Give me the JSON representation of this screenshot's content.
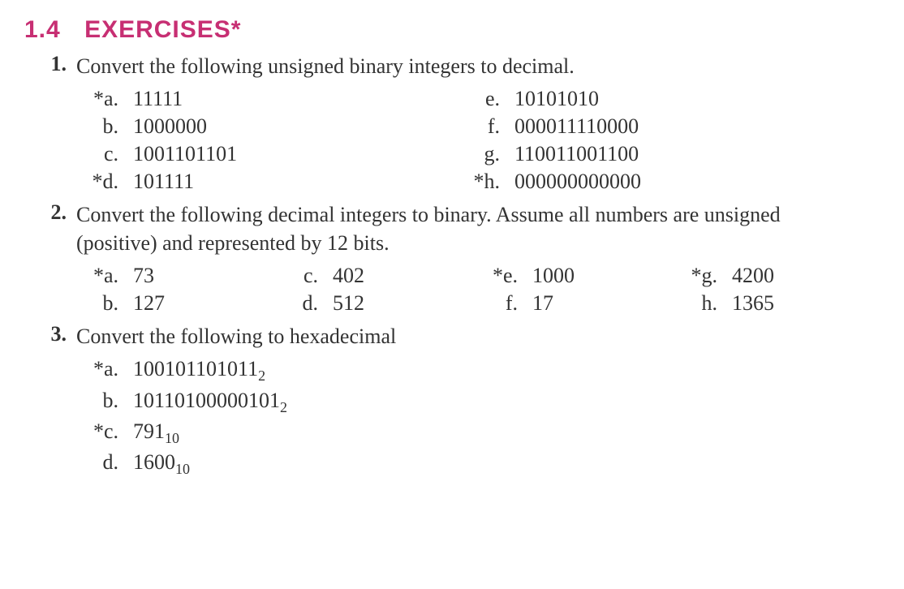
{
  "section": {
    "number": "1.4",
    "title": "EXERCISES*"
  },
  "colors": {
    "heading": "#c72f73",
    "text": "#333333",
    "background": "#ffffff"
  },
  "typography": {
    "heading_font": "Arial",
    "heading_size_pt": 22,
    "heading_weight": "bold",
    "body_font": "Georgia",
    "body_size_pt": 20
  },
  "problems": [
    {
      "number": "1.",
      "text": "Convert the following unsigned binary integers to decimal.",
      "layout": "2col",
      "items": [
        {
          "label": "*a.",
          "value": "11111"
        },
        {
          "label": "e.",
          "value": "10101010"
        },
        {
          "label": "b.",
          "value": "1000000"
        },
        {
          "label": "f.",
          "value": "000011110000"
        },
        {
          "label": "c.",
          "value": "1001101101"
        },
        {
          "label": "g.",
          "value": "110011001100"
        },
        {
          "label": "*d.",
          "value": "101111"
        },
        {
          "label": "*h.",
          "value": "000000000000"
        }
      ]
    },
    {
      "number": "2.",
      "text": "Convert the following decimal integers to binary. Assume all numbers are unsigned (positive) and represented by 12 bits.",
      "layout": "4col",
      "items": [
        {
          "label": "*a.",
          "value": "73"
        },
        {
          "label": "c.",
          "value": "402"
        },
        {
          "label": "*e.",
          "value": "1000"
        },
        {
          "label": "*g.",
          "value": "4200"
        },
        {
          "label": "b.",
          "value": "127"
        },
        {
          "label": "d.",
          "value": "512"
        },
        {
          "label": "f.",
          "value": "17"
        },
        {
          "label": "h.",
          "value": "1365"
        }
      ]
    },
    {
      "number": "3.",
      "text": "Convert the following to hexadecimal",
      "layout": "1col",
      "items": [
        {
          "label": "*a.",
          "value": "100101101011",
          "subscript": "2"
        },
        {
          "label": "b.",
          "value": "10110100000101",
          "subscript": "2"
        },
        {
          "label": "*c.",
          "value": "791",
          "subscript": "10"
        },
        {
          "label": "d.",
          "value": "1600",
          "subscript": "10"
        }
      ]
    }
  ]
}
